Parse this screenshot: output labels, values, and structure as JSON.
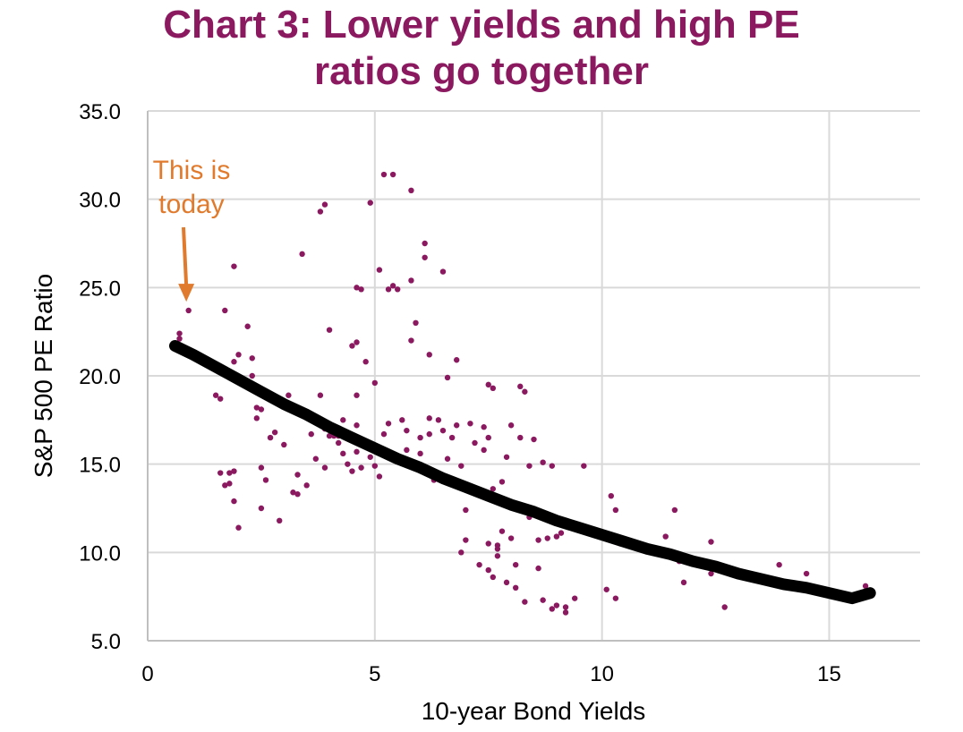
{
  "chart_data": {
    "type": "scatter",
    "title_lines": [
      "Chart 3: Lower yields and high PE",
      "ratios go together"
    ],
    "xlabel": "10-year Bond Yields",
    "ylabel": "S&P 500 PE Ratio",
    "xlim": [
      0,
      17
    ],
    "ylim": [
      5,
      35
    ],
    "x_ticks": [
      0,
      5,
      10,
      15
    ],
    "x_tick_labels": [
      "0",
      "5",
      "10",
      "15"
    ],
    "y_ticks": [
      5,
      10,
      15,
      20,
      25,
      30,
      35
    ],
    "y_tick_labels": [
      "5.0",
      "10.0",
      "15.0",
      "20.0",
      "25.0",
      "30.0",
      "35.0"
    ],
    "grid": "both",
    "colors": {
      "points": "#8a1960",
      "trend": "#000000",
      "annotation": "#e07a2c",
      "title": "#8a1960",
      "grid": "#d9d9d9"
    },
    "series": [
      {
        "type": "scatter",
        "points": [
          [
            0.7,
            22.4
          ],
          [
            0.7,
            22.1
          ],
          [
            0.9,
            23.7
          ],
          [
            1.5,
            18.9
          ],
          [
            1.6,
            18.7
          ],
          [
            1.6,
            14.5
          ],
          [
            1.7,
            13.8
          ],
          [
            1.8,
            14.5
          ],
          [
            1.7,
            23.7
          ],
          [
            1.9,
            26.2
          ],
          [
            1.9,
            20.8
          ],
          [
            2.0,
            21.2
          ],
          [
            2.0,
            11.4
          ],
          [
            1.9,
            12.9
          ],
          [
            1.8,
            13.9
          ],
          [
            1.9,
            14.6
          ],
          [
            2.2,
            22.8
          ],
          [
            2.3,
            21.0
          ],
          [
            2.3,
            20.0
          ],
          [
            2.4,
            18.2
          ],
          [
            2.4,
            17.6
          ],
          [
            2.5,
            18.1
          ],
          [
            2.5,
            14.8
          ],
          [
            2.6,
            14.1
          ],
          [
            2.5,
            12.5
          ],
          [
            2.7,
            16.5
          ],
          [
            2.8,
            18.8
          ],
          [
            2.8,
            16.8
          ],
          [
            2.9,
            11.8
          ],
          [
            3.0,
            16.1
          ],
          [
            3.1,
            18.9
          ],
          [
            3.2,
            13.4
          ],
          [
            3.3,
            14.4
          ],
          [
            3.3,
            13.3
          ],
          [
            3.4,
            26.9
          ],
          [
            3.5,
            13.8
          ],
          [
            3.6,
            16.7
          ],
          [
            3.7,
            15.3
          ],
          [
            3.8,
            29.3
          ],
          [
            3.8,
            18.9
          ],
          [
            3.9,
            29.7
          ],
          [
            3.9,
            17.0
          ],
          [
            3.9,
            14.8
          ],
          [
            4.0,
            22.6
          ],
          [
            4.0,
            16.6
          ],
          [
            4.1,
            16.6
          ],
          [
            4.2,
            16.6
          ],
          [
            4.2,
            16.2
          ],
          [
            4.3,
            17.5
          ],
          [
            4.3,
            15.6
          ],
          [
            4.4,
            16.6
          ],
          [
            4.4,
            15.0
          ],
          [
            4.5,
            21.7
          ],
          [
            4.5,
            14.6
          ],
          [
            4.6,
            25.0
          ],
          [
            4.6,
            21.9
          ],
          [
            4.6,
            18.9
          ],
          [
            4.6,
            17.2
          ],
          [
            4.6,
            15.7
          ],
          [
            4.7,
            24.9
          ],
          [
            4.7,
            14.8
          ],
          [
            4.8,
            20.8
          ],
          [
            4.8,
            16.1
          ],
          [
            4.9,
            29.8
          ],
          [
            4.9,
            15.4
          ],
          [
            5.0,
            14.9
          ],
          [
            5.0,
            19.6
          ],
          [
            5.1,
            26.0
          ],
          [
            5.1,
            14.3
          ],
          [
            5.2,
            31.4
          ],
          [
            5.2,
            16.7
          ],
          [
            5.3,
            24.9
          ],
          [
            5.3,
            17.3
          ],
          [
            5.4,
            31.4
          ],
          [
            5.4,
            25.1
          ],
          [
            5.5,
            24.9
          ],
          [
            5.6,
            17.5
          ],
          [
            5.7,
            16.9
          ],
          [
            5.7,
            15.8
          ],
          [
            5.8,
            25.4
          ],
          [
            5.8,
            22.0
          ],
          [
            5.8,
            30.5
          ],
          [
            5.9,
            23.0
          ],
          [
            6.0,
            16.5
          ],
          [
            6.0,
            15.6
          ],
          [
            6.1,
            27.5
          ],
          [
            6.1,
            26.7
          ],
          [
            6.2,
            21.2
          ],
          [
            6.2,
            17.6
          ],
          [
            6.2,
            16.7
          ],
          [
            6.3,
            14.1
          ],
          [
            6.4,
            17.5
          ],
          [
            6.5,
            25.9
          ],
          [
            6.5,
            16.9
          ],
          [
            6.6,
            19.9
          ],
          [
            6.6,
            15.3
          ],
          [
            6.7,
            16.5
          ],
          [
            6.8,
            20.9
          ],
          [
            6.8,
            17.2
          ],
          [
            6.9,
            14.9
          ],
          [
            6.9,
            10.0
          ],
          [
            7.0,
            10.7
          ],
          [
            7.0,
            12.4
          ],
          [
            7.1,
            17.3
          ],
          [
            7.2,
            16.2
          ],
          [
            7.3,
            13.4
          ],
          [
            7.3,
            9.3
          ],
          [
            7.4,
            17.1
          ],
          [
            7.4,
            15.8
          ],
          [
            7.5,
            19.5
          ],
          [
            7.5,
            16.5
          ],
          [
            7.5,
            10.5
          ],
          [
            7.5,
            9.0
          ],
          [
            7.6,
            19.3
          ],
          [
            7.6,
            13.6
          ],
          [
            7.6,
            13.0
          ],
          [
            7.6,
            8.6
          ],
          [
            7.7,
            9.8
          ],
          [
            7.7,
            10.2
          ],
          [
            7.7,
            10.4
          ],
          [
            7.8,
            14.0
          ],
          [
            7.8,
            11.2
          ],
          [
            7.9,
            8.3
          ],
          [
            7.9,
            15.4
          ],
          [
            8.0,
            17.2
          ],
          [
            8.0,
            12.8
          ],
          [
            8.0,
            10.8
          ],
          [
            8.1,
            8.0
          ],
          [
            8.1,
            9.3
          ],
          [
            8.2,
            19.4
          ],
          [
            8.2,
            16.5
          ],
          [
            8.3,
            19.1
          ],
          [
            8.3,
            7.2
          ],
          [
            8.4,
            14.9
          ],
          [
            8.4,
            12.0
          ],
          [
            8.5,
            16.4
          ],
          [
            8.6,
            9.1
          ],
          [
            8.6,
            10.7
          ],
          [
            8.7,
            7.3
          ],
          [
            8.7,
            15.1
          ],
          [
            8.8,
            10.8
          ],
          [
            8.9,
            6.8
          ],
          [
            8.9,
            14.9
          ],
          [
            9.0,
            7.0
          ],
          [
            9.0,
            10.9
          ],
          [
            9.1,
            11.1
          ],
          [
            9.2,
            6.6
          ],
          [
            9.2,
            6.9
          ],
          [
            9.4,
            7.4
          ],
          [
            9.6,
            14.9
          ],
          [
            10.1,
            7.9
          ],
          [
            10.2,
            13.2
          ],
          [
            10.3,
            12.4
          ],
          [
            10.3,
            7.4
          ],
          [
            10.4,
            10.5
          ],
          [
            11.4,
            10.9
          ],
          [
            11.6,
            12.4
          ],
          [
            11.7,
            9.5
          ],
          [
            11.8,
            8.3
          ],
          [
            12.4,
            10.6
          ],
          [
            12.4,
            8.8
          ],
          [
            12.7,
            6.9
          ],
          [
            13.2,
            8.8
          ],
          [
            13.9,
            9.3
          ],
          [
            14.5,
            8.8
          ],
          [
            15.8,
            8.1
          ]
        ]
      },
      {
        "type": "line",
        "x": [
          0.6,
          1.0,
          1.5,
          2.0,
          2.5,
          3.0,
          3.5,
          4.0,
          4.5,
          5.0,
          5.5,
          6.0,
          6.5,
          7.0,
          7.5,
          8.0,
          8.5,
          9.0,
          9.5,
          10.0,
          10.5,
          11.0,
          11.5,
          12.0,
          12.5,
          13.0,
          13.5,
          14.0,
          14.5,
          15.0,
          15.5,
          15.9
        ],
        "y": [
          21.7,
          21.2,
          20.5,
          19.8,
          19.1,
          18.4,
          17.8,
          17.1,
          16.5,
          15.9,
          15.3,
          14.8,
          14.2,
          13.7,
          13.2,
          12.7,
          12.3,
          11.8,
          11.4,
          11.0,
          10.6,
          10.2,
          9.9,
          9.5,
          9.2,
          8.8,
          8.5,
          8.2,
          8.0,
          7.7,
          7.4,
          7.7
        ]
      }
    ],
    "annotations": [
      {
        "text_lines": [
          "This is",
          "today"
        ],
        "arrow_to": [
          0.85,
          24.3
        ]
      }
    ]
  }
}
